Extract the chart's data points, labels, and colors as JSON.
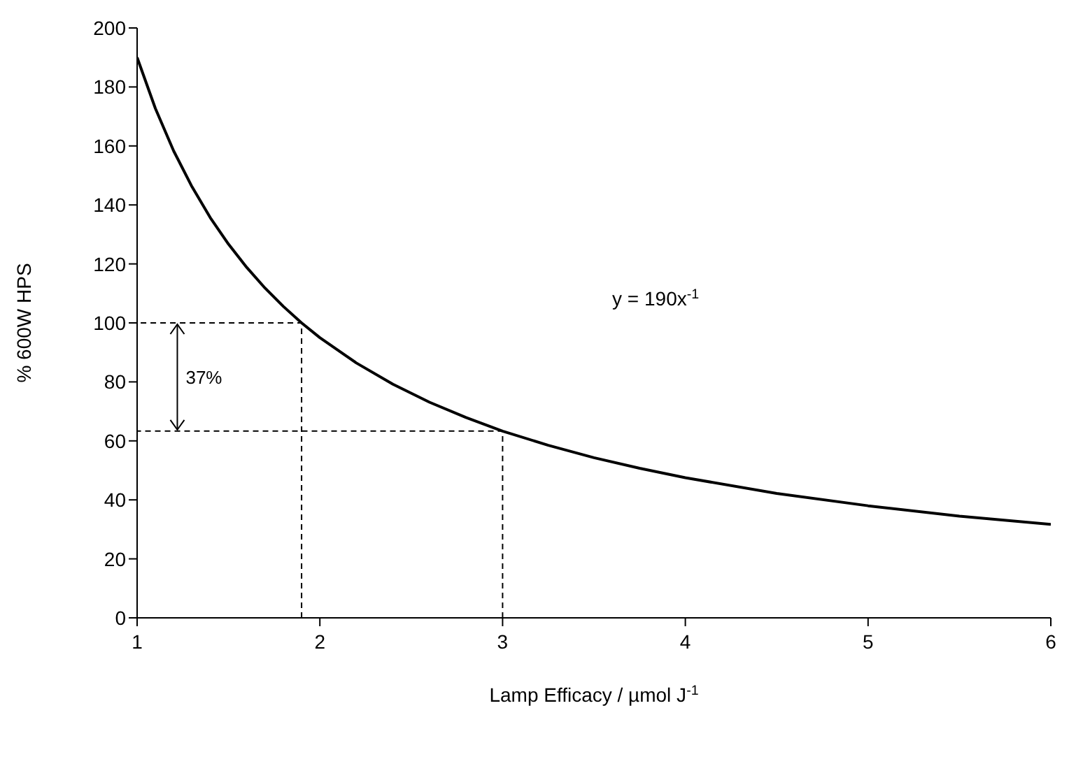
{
  "chart_data": {
    "type": "line",
    "xlabel": "Lamp Efficacy / µmol J$^{-1}$",
    "ylabel": "% 600W HPS",
    "xlim": [
      1,
      6
    ],
    "xticks": [
      1,
      2,
      3,
      4,
      5,
      6
    ],
    "ylim": [
      0,
      200
    ],
    "yticks": [
      0,
      20,
      40,
      60,
      80,
      100,
      120,
      140,
      160,
      180,
      200
    ],
    "marker": "none",
    "series": [
      {
        "color": "#000000",
        "line_style": "solid",
        "x": [
          1,
          1.1,
          1.2,
          1.3,
          1.4,
          1.5,
          1.6,
          1.7,
          1.8,
          1.9,
          2,
          2.2,
          2.4,
          2.6,
          2.8,
          3,
          3.25,
          3.5,
          3.75,
          4,
          4.5,
          5,
          5.5,
          6
        ],
        "values": [
          190,
          172.7,
          158.3,
          146.2,
          135.7,
          126.7,
          118.8,
          111.8,
          105.6,
          100,
          95,
          86.4,
          79.2,
          73.1,
          67.9,
          63.3,
          58.5,
          54.3,
          50.7,
          47.5,
          42.2,
          38,
          34.5,
          31.7
        ]
      },
      {
        "color": "#000000",
        "line_style": "dashed",
        "x": [
          1.9,
          1.9,
          1
        ],
        "values": [
          0,
          100,
          100
        ]
      },
      {
        "color": "#000000",
        "line_style": "dashed",
        "x": [
          3,
          3,
          1
        ],
        "values": [
          0,
          63.3,
          63.3
        ]
      }
    ],
    "annotations": [
      "y = 190x$^{-1}$",
      "37%"
    ]
  }
}
